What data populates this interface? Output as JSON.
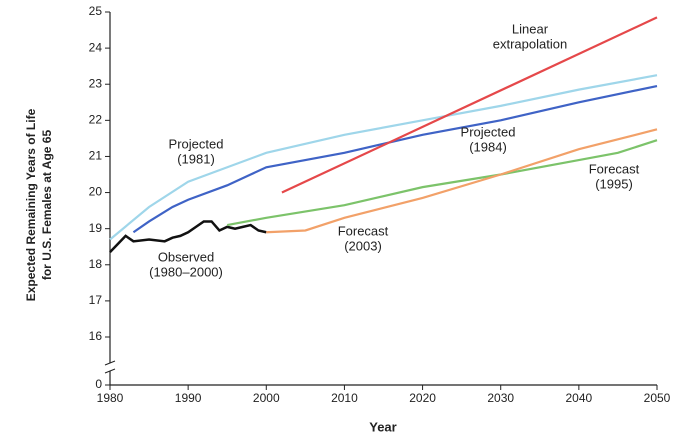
{
  "chart_data": {
    "type": "line",
    "xlabel": "Year",
    "ylabel": [
      "Expected Remaining Years of Life",
      "for U.S. Females at Age 65"
    ],
    "xlim": [
      1980,
      2050
    ],
    "xticks": [
      1980,
      1990,
      2000,
      2010,
      2020,
      2030,
      2040,
      2050
    ],
    "ylim": [
      0,
      25
    ],
    "yticks": [
      0,
      16,
      17,
      18,
      19,
      20,
      21,
      22,
      23,
      24,
      25
    ],
    "y_break": [
      0,
      16
    ],
    "series": [
      {
        "name": [
          "Observed",
          "(1980–2000)"
        ],
        "color": "#111111",
        "x": [
          1980,
          1982,
          1983,
          1985,
          1987,
          1988,
          1989,
          1990,
          1991,
          1992,
          1993,
          1994,
          1995,
          1996,
          1997,
          1998,
          1999,
          2000
        ],
        "values": [
          18.35,
          18.8,
          18.65,
          18.7,
          18.65,
          18.75,
          18.8,
          18.9,
          19.05,
          19.2,
          19.2,
          18.95,
          19.05,
          19.0,
          19.05,
          19.1,
          18.95,
          18.9
        ]
      },
      {
        "name": [
          "Projected",
          "(1981)"
        ],
        "color": "#9fd6ea",
        "x": [
          1980,
          1985,
          1990,
          2000,
          2010,
          2020,
          2030,
          2040,
          2050
        ],
        "values": [
          18.7,
          19.6,
          20.3,
          21.1,
          21.6,
          22.0,
          22.4,
          22.85,
          23.25
        ]
      },
      {
        "name": [
          "Projected",
          "(1984)"
        ],
        "color": "#3f63c6",
        "x": [
          1983,
          1985,
          1988,
          1990,
          1995,
          1998,
          2000,
          2010,
          2020,
          2030,
          2040,
          2050
        ],
        "values": [
          18.9,
          19.2,
          19.6,
          19.8,
          20.2,
          20.5,
          20.7,
          21.1,
          21.6,
          22.0,
          22.5,
          22.95
        ]
      },
      {
        "name": [
          "Linear",
          "extrapolation"
        ],
        "color": "#e5484a",
        "x": [
          2002,
          2050
        ],
        "values": [
          20.0,
          24.85
        ]
      },
      {
        "name": [
          "Forecast",
          "(1995)"
        ],
        "color": "#7cc36a",
        "x": [
          1995,
          2000,
          2010,
          2020,
          2030,
          2040,
          2045,
          2050
        ],
        "values": [
          19.1,
          19.3,
          19.65,
          20.15,
          20.5,
          20.9,
          21.1,
          21.45
        ]
      },
      {
        "name": [
          "Forecast",
          "(2003)"
        ],
        "color": "#f2a169",
        "x": [
          2000,
          2005,
          2010,
          2020,
          2030,
          2040,
          2050
        ],
        "values": [
          18.9,
          18.95,
          19.3,
          19.85,
          20.5,
          21.2,
          21.75
        ]
      }
    ]
  }
}
